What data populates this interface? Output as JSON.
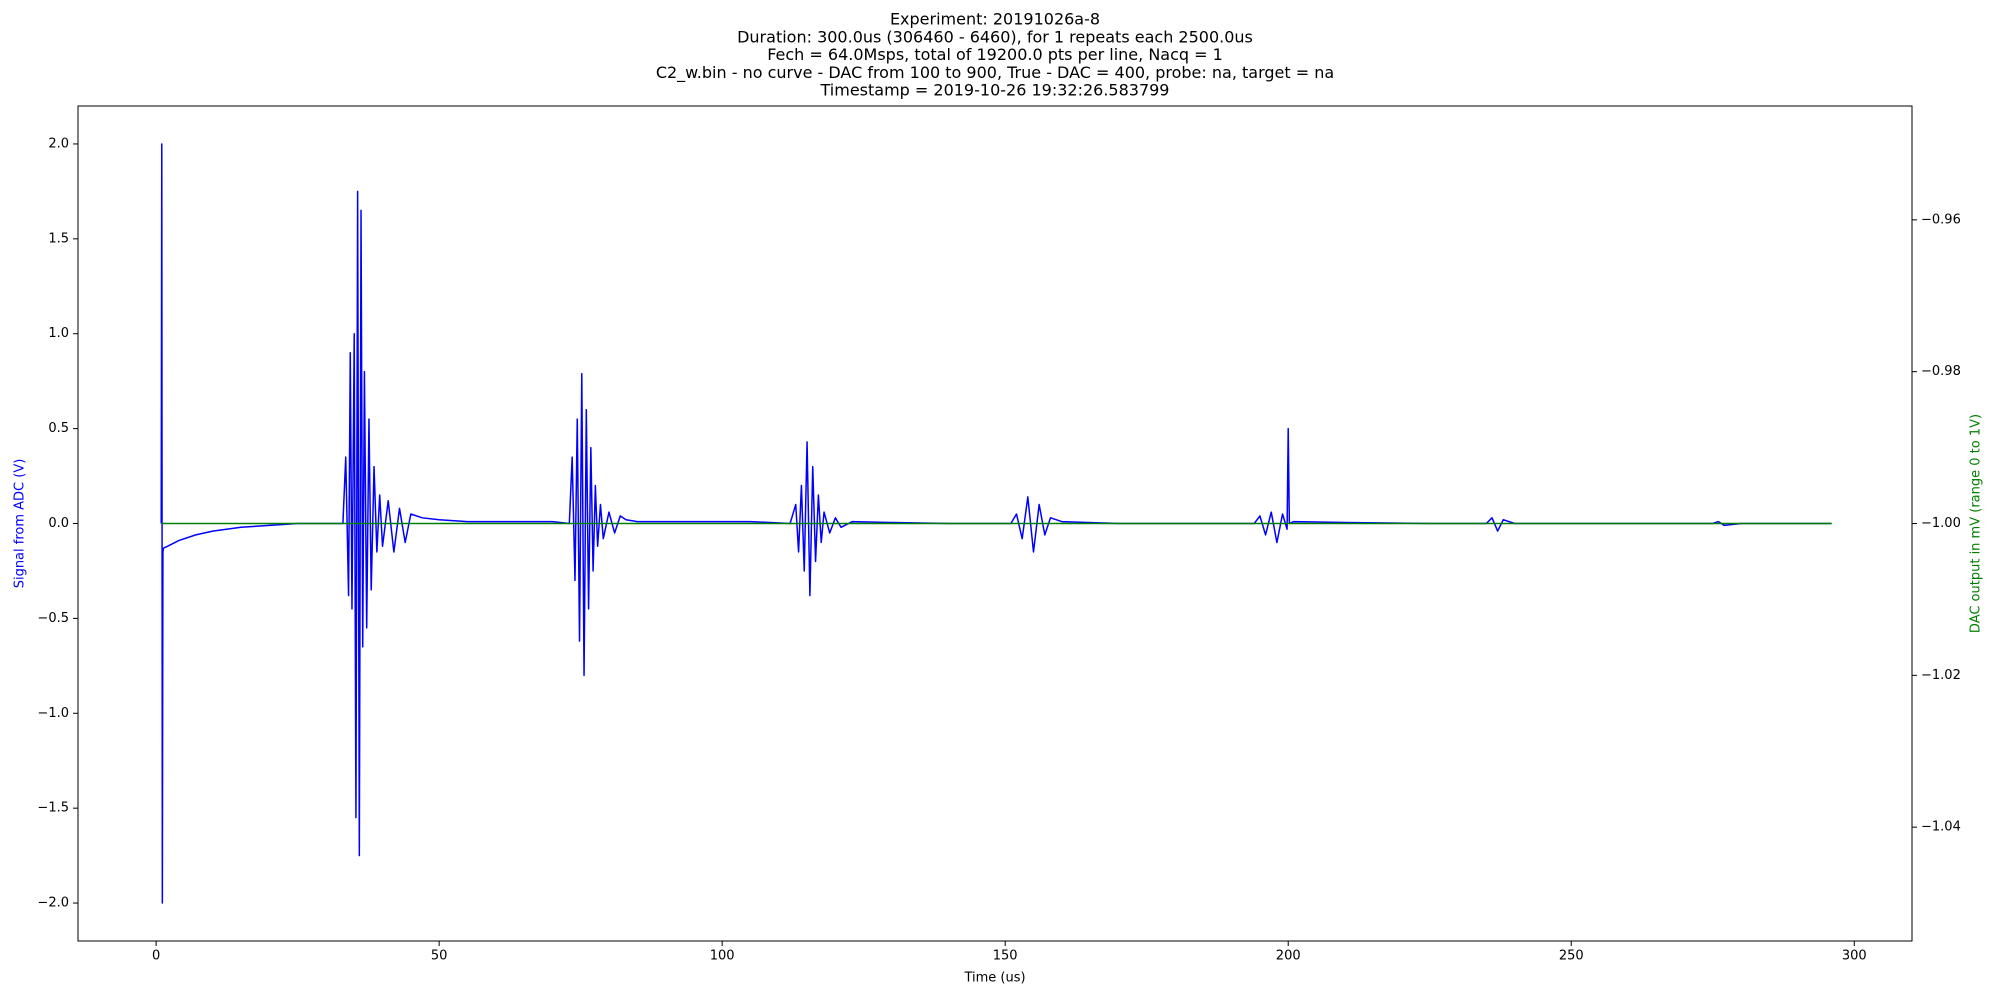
{
  "chart_data": {
    "type": "line",
    "title": [
      "Experiment: 20191026a-8",
      "Duration: 300.0us (306460 - 6460), for 1 repeats each 2500.0us",
      "Fech = 64.0Msps, total of 19200.0 pts per line, Nacq = 1",
      "C2_w.bin - no curve - DAC from 100 to 900, True - DAC = 400, probe: na, target = na",
      "Timestamp = 2019-10-26 19:32:26.583799"
    ],
    "xlabel": "Time (us)",
    "ylabel": "Signal from ADC (V)",
    "y2label": "DAC output in mV (range 0 to 1V)",
    "ylabel_color": "blue",
    "y2label_color": "green",
    "xlim": [
      -13.8,
      310.2
    ],
    "ylim": [
      -2.2,
      2.2
    ],
    "y2lim": [
      -1.055,
      -0.945
    ],
    "xticks": [
      0,
      50,
      100,
      150,
      200,
      250,
      300
    ],
    "yticks": [
      {
        "value": -2.0,
        "label": "−2.0"
      },
      {
        "value": -1.5,
        "label": "−1.5"
      },
      {
        "value": -1.0,
        "label": "−1.0"
      },
      {
        "value": -0.5,
        "label": "−0.5"
      },
      {
        "value": 0,
        "label": "0.0"
      },
      {
        "value": 0.5,
        "label": "0.5"
      },
      {
        "value": 1.0,
        "label": "1.0"
      },
      {
        "value": 1.5,
        "label": "1.5"
      },
      {
        "value": 2.0,
        "label": "2.0"
      }
    ],
    "y2ticks": [
      {
        "value": -1.04,
        "label": "−1.04"
      },
      {
        "value": -1.02,
        "label": "−1.02"
      },
      {
        "value": -1.0,
        "label": "−1.00"
      },
      {
        "value": -0.98,
        "label": "−0.98"
      },
      {
        "value": -0.96,
        "label": "−0.96"
      }
    ],
    "series": [
      {
        "color": "#0000ff",
        "x": [
          0.9,
          1.0,
          1.1,
          1.2,
          1.3,
          2,
          4,
          7,
          10,
          15,
          20,
          25,
          33,
          33.5,
          34,
          34.3,
          34.6,
          35,
          35.3,
          35.6,
          35.9,
          36.2,
          36.5,
          36.8,
          37.2,
          37.6,
          38,
          38.5,
          39,
          39.5,
          40,
          41,
          42,
          43,
          44,
          45,
          47,
          50,
          55,
          60,
          65,
          70,
          73,
          73.5,
          74,
          74.4,
          74.8,
          75.2,
          75.6,
          76,
          76.4,
          76.8,
          77.2,
          77.6,
          78,
          78.5,
          79,
          80,
          81,
          82,
          83,
          85,
          88,
          95,
          105,
          112,
          113,
          113.5,
          114,
          114.5,
          115,
          115.5,
          116,
          116.5,
          117,
          117.5,
          118,
          119,
          120,
          121,
          123,
          130,
          140,
          151,
          152,
          153,
          154,
          155,
          156,
          157,
          158,
          160,
          170,
          185,
          194,
          195,
          196,
          197,
          198,
          199,
          199.8,
          200,
          200.2,
          201,
          210,
          225,
          235,
          236,
          237,
          238,
          240,
          260,
          275,
          276,
          277,
          280,
          296
        ],
        "values": [
          0,
          2.0,
          -2.0,
          -0.15,
          -0.13,
          -0.12,
          -0.09,
          -0.06,
          -0.04,
          -0.02,
          -0.01,
          0,
          0,
          0.35,
          -0.38,
          0.9,
          -0.45,
          1.0,
          -1.55,
          1.75,
          -1.75,
          1.65,
          -0.65,
          0.8,
          -0.55,
          0.55,
          -0.35,
          0.3,
          -0.15,
          0.15,
          -0.12,
          0.12,
          -0.15,
          0.08,
          -0.1,
          0.05,
          0.03,
          0.02,
          0.01,
          0.01,
          0.01,
          0.01,
          0,
          0.35,
          -0.3,
          0.55,
          -0.62,
          0.79,
          -0.8,
          0.6,
          -0.45,
          0.4,
          -0.25,
          0.2,
          -0.12,
          0.1,
          -0.08,
          0.06,
          -0.05,
          0.04,
          0.02,
          0.01,
          0.01,
          0.01,
          0.01,
          0,
          0.1,
          -0.15,
          0.2,
          -0.25,
          0.43,
          -0.38,
          0.3,
          -0.2,
          0.15,
          -0.1,
          0.06,
          -0.05,
          0.03,
          -0.02,
          0.01,
          0.005,
          0,
          0,
          0.05,
          -0.08,
          0.14,
          -0.15,
          0.1,
          -0.06,
          0.03,
          0.01,
          0,
          0,
          0,
          0.04,
          -0.06,
          0.06,
          -0.1,
          0.05,
          -0.03,
          0.5,
          0,
          0.01,
          0.005,
          0,
          0,
          0.03,
          -0.04,
          0.02,
          0,
          0,
          0,
          0.01,
          -0.01,
          0,
          0
        ]
      },
      {
        "color": "#008000",
        "axis": "y2",
        "x": [
          1,
          296
        ],
        "values": [
          -1.0,
          -1.0
        ]
      }
    ]
  }
}
